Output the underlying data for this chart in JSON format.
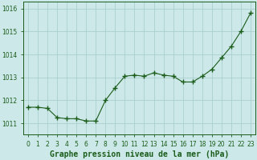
{
  "x": [
    0,
    1,
    2,
    3,
    4,
    5,
    6,
    7,
    8,
    9,
    10,
    11,
    12,
    13,
    14,
    15,
    16,
    17,
    18,
    19,
    20,
    21,
    22,
    23
  ],
  "y": [
    1011.7,
    1011.7,
    1011.65,
    1011.25,
    1011.2,
    1011.2,
    1011.1,
    1011.1,
    1012.0,
    1012.55,
    1013.05,
    1013.1,
    1013.05,
    1013.2,
    1013.1,
    1013.05,
    1012.8,
    1012.8,
    1013.05,
    1013.35,
    1013.85,
    1014.35,
    1015.0,
    1015.8
  ],
  "line_color": "#1a5c1a",
  "marker_color": "#1a5c1a",
  "bg_color": "#cce8e8",
  "grid_color": "#aacece",
  "title": "Graphe pression niveau de la mer (hPa)",
  "ylim_min": 1010.5,
  "ylim_max": 1016.3,
  "xlim_min": -0.5,
  "xlim_max": 23.5,
  "yticks": [
    1011,
    1012,
    1013,
    1014,
    1015,
    1016
  ],
  "xtick_labels": [
    "0",
    "1",
    "2",
    "3",
    "4",
    "5",
    "6",
    "7",
    "8",
    "9",
    "10",
    "11",
    "12",
    "13",
    "14",
    "15",
    "16",
    "17",
    "18",
    "19",
    "20",
    "21",
    "22",
    "23"
  ],
  "tick_fontsize": 5.5,
  "title_fontsize": 7.0
}
